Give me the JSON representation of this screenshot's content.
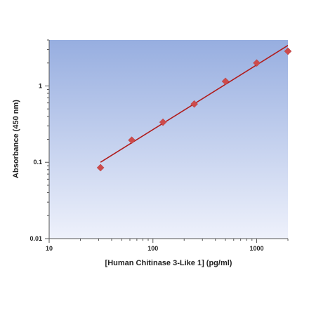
{
  "chart_data": {
    "type": "scatter",
    "title": "",
    "xlabel": "[Human Chitinase 3-Like 1] (pg/ml)",
    "ylabel": "Absorbance (450 nm)",
    "x_scale": "log",
    "y_scale": "log",
    "xlim": [
      10,
      2000
    ],
    "ylim": [
      0.01,
      4
    ],
    "x_ticks": [
      {
        "value": 10,
        "label": "10"
      },
      {
        "value": 100,
        "label": "100"
      },
      {
        "value": 1000,
        "label": "1000"
      }
    ],
    "y_ticks": [
      {
        "value": 0.01,
        "label": "0.01"
      },
      {
        "value": 0.1,
        "label": "0.1"
      },
      {
        "value": 1,
        "label": "1"
      }
    ],
    "grid": false,
    "legend": "none",
    "series": [
      {
        "kind": "points",
        "marker": "diamond",
        "color": "#cd4b4b",
        "x": [
          31.25,
          62.5,
          125,
          250,
          500,
          1000,
          2000
        ],
        "y": [
          0.085,
          0.195,
          0.335,
          0.58,
          1.15,
          2.0,
          2.85
        ]
      },
      {
        "kind": "fit-line",
        "color": "#b01c1c",
        "x": [
          31.25,
          2000
        ],
        "y": [
          0.1,
          3.4
        ]
      }
    ],
    "colors": {
      "plot_top": "#97aee0",
      "plot_bottom": "#eef1fb",
      "axis": "#555555"
    }
  }
}
